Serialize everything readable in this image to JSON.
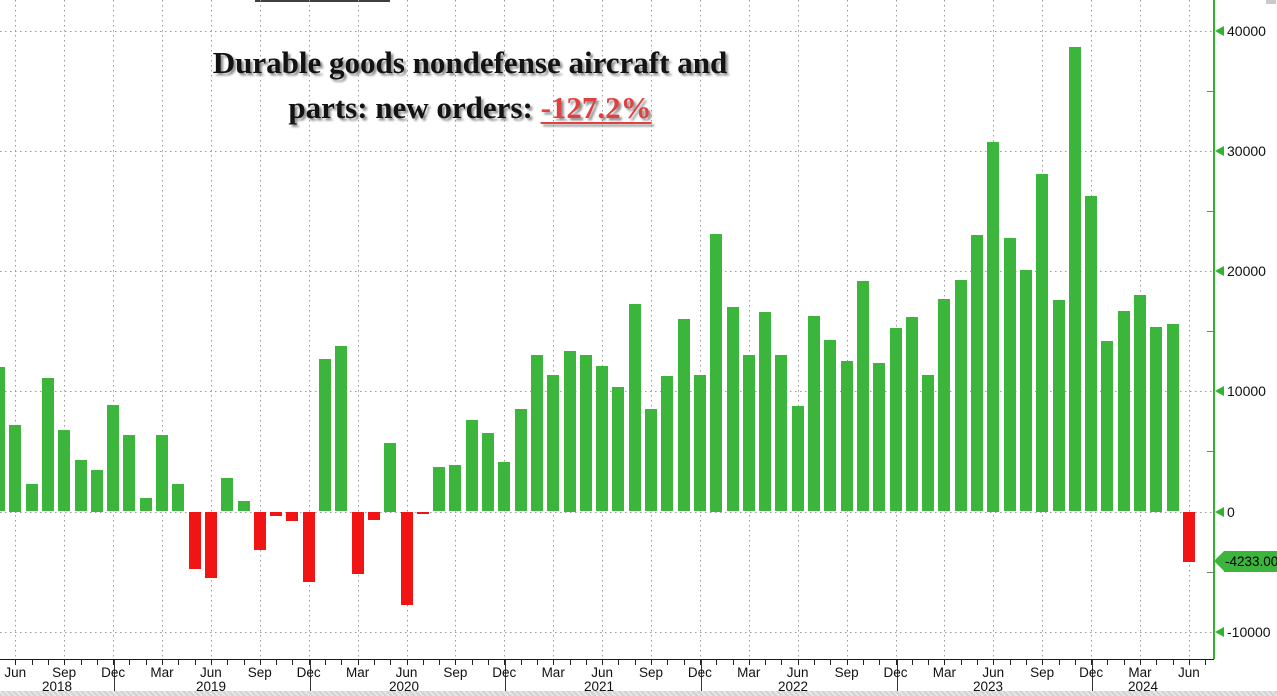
{
  "title": {
    "line1": "Durable goods nondefense aircraft and",
    "line2_prefix": "parts: new orders: ",
    "highlight": "-127.2%"
  },
  "last_point_tag": "-4233.00",
  "colors": {
    "bar_positive": "#3CB53C",
    "bar_negative": "#F01414",
    "y_axis_line": "#2FB32F",
    "tag_background": "#3CB53C",
    "title_highlight": "#E04040",
    "gridline": "#9a9a9a"
  },
  "chart_data": {
    "type": "bar",
    "title": "Durable goods nondefense aircraft and parts: new orders: -127.2%",
    "x": [
      "May 2018",
      "Jun 2018",
      "Jul 2018",
      "Aug 2018",
      "Sep 2018",
      "Oct 2018",
      "Nov 2018",
      "Dec 2018",
      "Jan 2019",
      "Feb 2019",
      "Mar 2019",
      "Apr 2019",
      "May 2019",
      "Jun 2019",
      "Jul 2019",
      "Aug 2019",
      "Sep 2019",
      "Oct 2019",
      "Nov 2019",
      "Dec 2019",
      "Jan 2020",
      "Feb 2020",
      "Mar 2020",
      "Apr 2020",
      "May 2020",
      "Jun 2020",
      "Jul 2020",
      "Aug 2020",
      "Sep 2020",
      "Oct 2020",
      "Nov 2020",
      "Dec 2020",
      "Jan 2021",
      "Feb 2021",
      "Mar 2021",
      "Apr 2021",
      "May 2021",
      "Jun 2021",
      "Jul 2021",
      "Aug 2021",
      "Sep 2021",
      "Oct 2021",
      "Nov 2021",
      "Dec 2021",
      "Jan 2022",
      "Feb 2022",
      "Mar 2022",
      "Apr 2022",
      "May 2022",
      "Jun 2022",
      "Jul 2022",
      "Aug 2022",
      "Sep 2022",
      "Oct 2022",
      "Nov 2022",
      "Dec 2022",
      "Jan 2023",
      "Feb 2023",
      "Mar 2023",
      "Apr 2023",
      "May 2023",
      "Jun 2023",
      "Jul 2023",
      "Aug 2023",
      "Sep 2023",
      "Oct 2023",
      "Nov 2023",
      "Dec 2023",
      "Jan 2024",
      "Feb 2024",
      "Mar 2024",
      "Apr 2024",
      "May 2024",
      "Jun 2024"
    ],
    "values": [
      12000,
      7200,
      2300,
      11100,
      6800,
      4300,
      3500,
      8900,
      6400,
      1100,
      6400,
      2300,
      -4800,
      -5500,
      2800,
      900,
      -3200,
      -400,
      -800,
      -5900,
      12700,
      13800,
      -5200,
      -700,
      5700,
      -7800,
      -200,
      3700,
      3900,
      7600,
      6500,
      4100,
      8500,
      13000,
      11400,
      13400,
      13000,
      12100,
      10400,
      17300,
      8500,
      11300,
      16000,
      11400,
      23100,
      17000,
      13000,
      16600,
      13000,
      8800,
      16300,
      14300,
      12500,
      19200,
      12400,
      15300,
      16200,
      11400,
      17700,
      19300,
      23000,
      30800,
      22800,
      20100,
      28100,
      17600,
      38700,
      26300,
      14200,
      16700,
      18000,
      15400,
      15600,
      -4233
    ],
    "last_value_label": "-4233.00",
    "y_ticks_major": [
      40000,
      30000,
      20000,
      10000,
      0,
      -10000
    ],
    "y_ticks_minor": [
      35000,
      25000,
      15000,
      5000,
      -5000
    ],
    "x_quarter_labels": [
      "Jun",
      "Sep",
      "Dec",
      "Mar",
      "Jun",
      "Sep",
      "Dec",
      "Mar",
      "Jun",
      "Sep",
      "Dec",
      "Mar",
      "Jun",
      "Sep",
      "Dec",
      "Mar",
      "Jun",
      "Sep",
      "Dec",
      "Mar",
      "Jun",
      "Sep",
      "Dec",
      "Mar",
      "Jun"
    ],
    "year_labels": [
      "2018",
      "2019",
      "2020",
      "2021",
      "2022",
      "2023",
      "2024"
    ],
    "ylim": [
      -12300,
      42600
    ],
    "grid": "dotted",
    "legend_position": "none"
  }
}
